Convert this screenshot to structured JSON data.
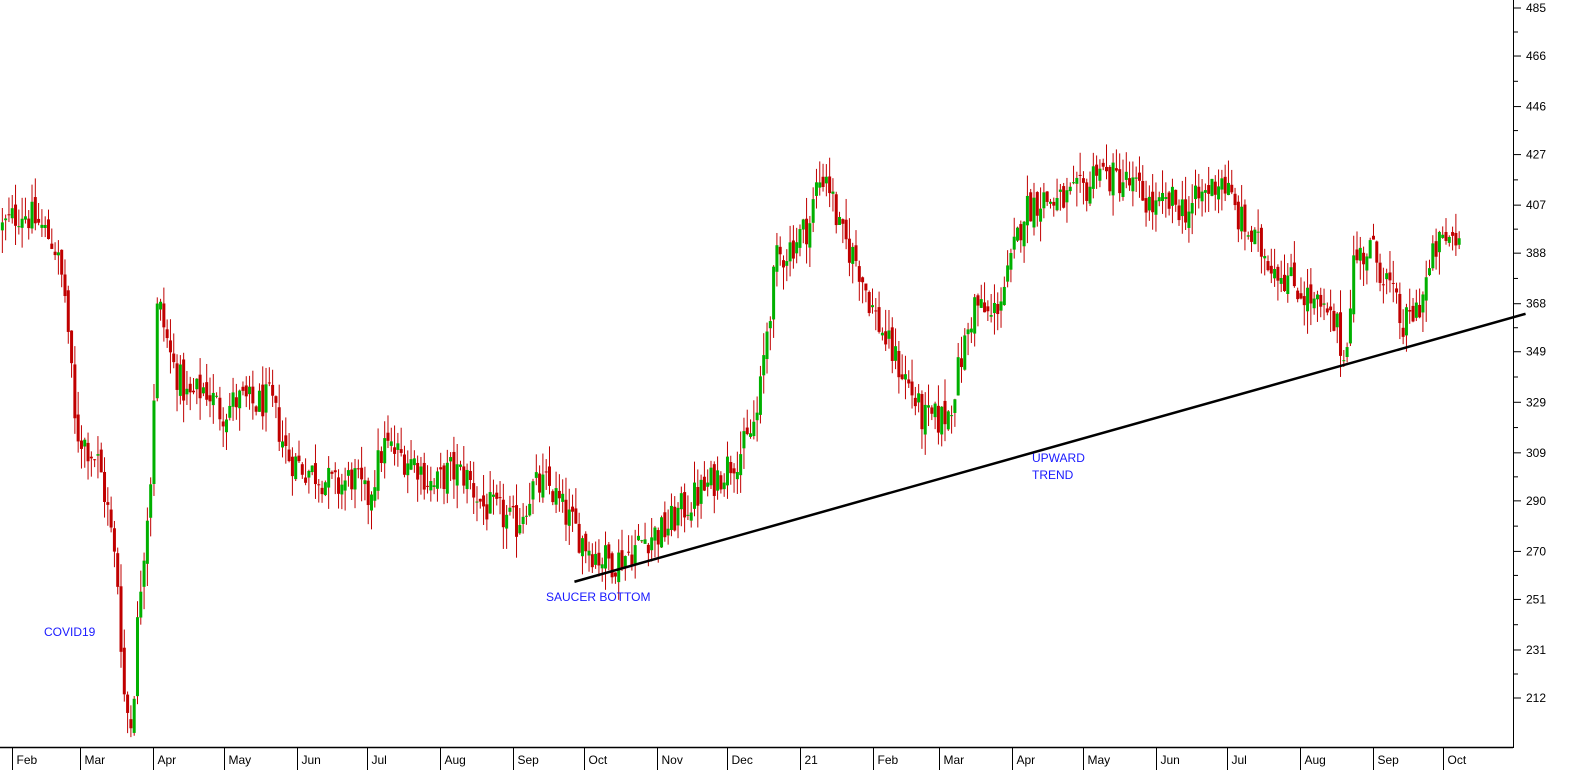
{
  "chart_data": {
    "type": "candlestick",
    "title": "",
    "xlabel": "",
    "ylabel": "",
    "ylim": [
      194,
      490
    ],
    "y_ticks": [
      485,
      466,
      446,
      427,
      407,
      388,
      368,
      349,
      329,
      309,
      290,
      270,
      251,
      231,
      212
    ],
    "x_tick_labels": [
      "Feb",
      "Mar",
      "Apr",
      "May",
      "Jun",
      "Jul",
      "Aug",
      "Sep",
      "Oct",
      "Nov",
      "Dec",
      "21",
      "Feb",
      "Mar",
      "Apr",
      "May",
      "Jun",
      "Jul",
      "Aug",
      "Sep",
      "Oct"
    ],
    "grid": false,
    "up_color": "#00b000",
    "down_color": "#c00000",
    "trend_color": "#000000",
    "annotation_color": "#1a1aff",
    "series": [
      {
        "values": [
          {
            "d": "2020-01-28",
            "c": 398
          },
          {
            "d": "2020-02-05",
            "c": 405
          },
          {
            "d": "2020-02-12",
            "c": 400
          },
          {
            "d": "2020-02-19",
            "c": 392
          },
          {
            "d": "2020-02-24",
            "c": 370
          },
          {
            "d": "2020-02-28",
            "c": 318
          },
          {
            "d": "2020-03-04",
            "c": 312
          },
          {
            "d": "2020-03-09",
            "c": 305
          },
          {
            "d": "2020-03-13",
            "c": 285
          },
          {
            "d": "2020-03-17",
            "c": 258
          },
          {
            "d": "2020-03-20",
            "c": 210
          },
          {
            "d": "2020-03-23",
            "c": 201
          },
          {
            "d": "2020-03-26",
            "c": 250
          },
          {
            "d": "2020-03-31",
            "c": 300
          },
          {
            "d": "2020-04-03",
            "c": 370
          },
          {
            "d": "2020-04-09",
            "c": 345
          },
          {
            "d": "2020-04-16",
            "c": 330
          },
          {
            "d": "2020-04-23",
            "c": 335
          },
          {
            "d": "2020-04-30",
            "c": 325
          },
          {
            "d": "2020-05-07",
            "c": 330
          },
          {
            "d": "2020-05-14",
            "c": 328
          },
          {
            "d": "2020-05-21",
            "c": 330
          },
          {
            "d": "2020-05-28",
            "c": 308
          },
          {
            "d": "2020-06-04",
            "c": 303
          },
          {
            "d": "2020-06-11",
            "c": 300
          },
          {
            "d": "2020-06-18",
            "c": 295
          },
          {
            "d": "2020-06-25",
            "c": 300
          },
          {
            "d": "2020-07-01",
            "c": 290
          },
          {
            "d": "2020-07-08",
            "c": 312
          },
          {
            "d": "2020-07-15",
            "c": 308
          },
          {
            "d": "2020-07-22",
            "c": 305
          },
          {
            "d": "2020-07-29",
            "c": 295
          },
          {
            "d": "2020-08-05",
            "c": 302
          },
          {
            "d": "2020-08-12",
            "c": 300
          },
          {
            "d": "2020-08-19",
            "c": 288
          },
          {
            "d": "2020-08-26",
            "c": 285
          },
          {
            "d": "2020-09-02",
            "c": 280
          },
          {
            "d": "2020-09-09",
            "c": 295
          },
          {
            "d": "2020-09-16",
            "c": 296
          },
          {
            "d": "2020-09-23",
            "c": 285
          },
          {
            "d": "2020-09-30",
            "c": 275
          },
          {
            "d": "2020-10-07",
            "c": 268
          },
          {
            "d": "2020-10-14",
            "c": 266
          },
          {
            "d": "2020-10-21",
            "c": 270
          },
          {
            "d": "2020-10-28",
            "c": 276
          },
          {
            "d": "2020-11-04",
            "c": 278
          },
          {
            "d": "2020-11-11",
            "c": 286
          },
          {
            "d": "2020-11-18",
            "c": 292
          },
          {
            "d": "2020-11-25",
            "c": 298
          },
          {
            "d": "2020-12-02",
            "c": 305
          },
          {
            "d": "2020-12-09",
            "c": 312
          },
          {
            "d": "2020-12-14",
            "c": 325
          },
          {
            "d": "2020-12-18",
            "c": 360
          },
          {
            "d": "2020-12-22",
            "c": 385
          },
          {
            "d": "2020-12-29",
            "c": 392
          },
          {
            "d": "2021-01-05",
            "c": 400
          },
          {
            "d": "2021-01-08",
            "c": 415
          },
          {
            "d": "2021-01-12",
            "c": 420
          },
          {
            "d": "2021-01-18",
            "c": 395
          },
          {
            "d": "2021-01-25",
            "c": 385
          },
          {
            "d": "2021-02-01",
            "c": 365
          },
          {
            "d": "2021-02-08",
            "c": 350
          },
          {
            "d": "2021-02-15",
            "c": 338
          },
          {
            "d": "2021-02-22",
            "c": 322
          },
          {
            "d": "2021-03-01",
            "c": 322
          },
          {
            "d": "2021-03-05",
            "c": 325
          },
          {
            "d": "2021-03-10",
            "c": 345
          },
          {
            "d": "2021-03-16",
            "c": 368
          },
          {
            "d": "2021-03-23",
            "c": 362
          },
          {
            "d": "2021-03-30",
            "c": 378
          },
          {
            "d": "2021-04-06",
            "c": 405
          },
          {
            "d": "2021-04-13",
            "c": 410
          },
          {
            "d": "2021-04-20",
            "c": 408
          },
          {
            "d": "2021-04-27",
            "c": 410
          },
          {
            "d": "2021-05-04",
            "c": 415
          },
          {
            "d": "2021-05-07",
            "c": 425
          },
          {
            "d": "2021-05-11",
            "c": 418
          },
          {
            "d": "2021-05-18",
            "c": 417
          },
          {
            "d": "2021-05-25",
            "c": 412
          },
          {
            "d": "2021-06-01",
            "c": 405
          },
          {
            "d": "2021-06-08",
            "c": 408
          },
          {
            "d": "2021-06-15",
            "c": 405
          },
          {
            "d": "2021-06-22",
            "c": 412
          },
          {
            "d": "2021-06-29",
            "c": 418
          },
          {
            "d": "2021-07-06",
            "c": 402
          },
          {
            "d": "2021-07-13",
            "c": 392
          },
          {
            "d": "2021-07-20",
            "c": 385
          },
          {
            "d": "2021-07-27",
            "c": 378
          },
          {
            "d": "2021-08-03",
            "c": 372
          },
          {
            "d": "2021-08-10",
            "c": 365
          },
          {
            "d": "2021-08-17",
            "c": 358
          },
          {
            "d": "2021-08-20",
            "c": 345
          },
          {
            "d": "2021-08-24",
            "c": 385
          },
          {
            "d": "2021-08-31",
            "c": 390
          },
          {
            "d": "2021-09-07",
            "c": 378
          },
          {
            "d": "2021-09-14",
            "c": 358
          },
          {
            "d": "2021-09-21",
            "c": 368
          },
          {
            "d": "2021-09-28",
            "c": 390
          },
          {
            "d": "2021-10-05",
            "c": 395
          },
          {
            "d": "2021-10-08",
            "c": 393
          }
        ]
      }
    ],
    "trendline": [
      {
        "d": "2020-09-27",
        "v": 258
      },
      {
        "d": "2021-11-05",
        "v": 364
      }
    ],
    "annotations": [
      "COVID19",
      "SAUCER BOTTOM",
      "UPWARD\nTREND"
    ]
  }
}
